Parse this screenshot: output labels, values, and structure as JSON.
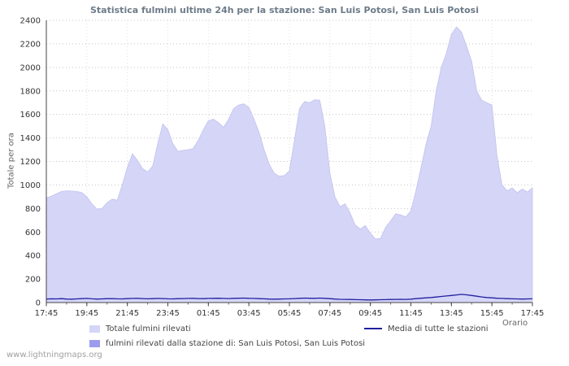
{
  "page": {
    "watermark": "www.lightningmaps.org"
  },
  "chart": {
    "title": "Statistica fulmini ultime 24h per la stazione: San Luis Potosi, San Luis Potosi",
    "ylabel": "Totale per ora",
    "xlabel": "Orario",
    "legend": [
      {
        "label": "Totale fulmini rilevati",
        "swatch": "#d5d5f7",
        "type": "area"
      },
      {
        "label": "fulmini rilevati dalla stazione di: San Luis Potosi, San Luis Potosi",
        "swatch": "#9c9cec",
        "type": "area"
      },
      {
        "label": "Media di tutte le stazioni",
        "swatch": "#2020a0",
        "type": "line"
      }
    ],
    "colors": {
      "title": "#6d7b88",
      "area_total": "#d5d5f7",
      "area_station": "#9c9cec",
      "line_average": "#2020a0",
      "grid": "#c4c4cc",
      "axis": "#444444"
    }
  },
  "chart_data": {
    "type": "area",
    "title": "Statistica fulmini ultime 24h per la stazione: San Luis Potosi, San Luis Potosi",
    "xlabel": "Orario",
    "ylabel": "Totale per ora",
    "ylim": [
      0,
      2400
    ],
    "y_ticks": [
      0,
      200,
      400,
      600,
      800,
      1000,
      1200,
      1400,
      1600,
      1800,
      2000,
      2200,
      2400
    ],
    "x_ticks": [
      "17:45",
      "19:45",
      "21:45",
      "23:45",
      "01:45",
      "03:45",
      "05:45",
      "07:45",
      "09:45",
      "11:45",
      "13:45",
      "15:45",
      "17:45"
    ],
    "x_interval_minutes": 15,
    "x_span_hours": 24,
    "grid": true,
    "legend_position": "bottom",
    "series": [
      {
        "name": "Totale fulmini rilevati",
        "type": "area",
        "color": "#d5d5f7",
        "values": [
          890,
          905,
          925,
          945,
          950,
          948,
          945,
          935,
          900,
          840,
          795,
          800,
          850,
          880,
          870,
          1000,
          1150,
          1265,
          1210,
          1140,
          1110,
          1160,
          1350,
          1520,
          1470,
          1350,
          1285,
          1295,
          1300,
          1310,
          1380,
          1470,
          1545,
          1560,
          1530,
          1490,
          1560,
          1650,
          1680,
          1690,
          1660,
          1560,
          1450,
          1300,
          1180,
          1100,
          1075,
          1080,
          1120,
          1380,
          1650,
          1710,
          1700,
          1725,
          1720,
          1500,
          1100,
          900,
          815,
          840,
          760,
          660,
          625,
          655,
          590,
          540,
          545,
          640,
          695,
          755,
          745,
          730,
          780,
          950,
          1150,
          1350,
          1500,
          1800,
          2000,
          2120,
          2280,
          2345,
          2300,
          2180,
          2050,
          1800,
          1720,
          1700,
          1680,
          1250,
          1000,
          950,
          975,
          935,
          965,
          940,
          975
        ]
      },
      {
        "name": "fulmini rilevati dalla stazione di: San Luis Potosi, San Luis Potosi",
        "type": "area",
        "color": "#9c9cec",
        "values": [
          0,
          0,
          0,
          0,
          0,
          0,
          0,
          0,
          0,
          0,
          0,
          0,
          0,
          0,
          0,
          0,
          0,
          0,
          0,
          0,
          0,
          0,
          0,
          0,
          0,
          0,
          0,
          0,
          0,
          0,
          0,
          0,
          0,
          0,
          0,
          0,
          0,
          0,
          0,
          0,
          0,
          0,
          0,
          0,
          0,
          0,
          0,
          0,
          0,
          0,
          0,
          0,
          0,
          0,
          0,
          0,
          0,
          0,
          0,
          0,
          0,
          0,
          0,
          0,
          0,
          0,
          0,
          0,
          0,
          0,
          0,
          0,
          0,
          0,
          0,
          0,
          0,
          0,
          0,
          0,
          0,
          0,
          0,
          0,
          0,
          0,
          0,
          0,
          0,
          0,
          0,
          0,
          0,
          0,
          0,
          0,
          0
        ]
      },
      {
        "name": "Media di tutte le stazioni",
        "type": "line",
        "color": "#2020a0",
        "values": [
          30,
          32,
          31,
          33,
          30,
          29,
          31,
          33,
          35,
          32,
          30,
          31,
          33,
          34,
          32,
          31,
          33,
          35,
          36,
          34,
          32,
          33,
          35,
          34,
          32,
          31,
          33,
          34,
          35,
          36,
          34,
          33,
          35,
          36,
          37,
          35,
          34,
          36,
          37,
          38,
          36,
          35,
          33,
          32,
          30,
          29,
          30,
          31,
          32,
          34,
          36,
          38,
          37,
          36,
          38,
          36,
          33,
          30,
          28,
          27,
          26,
          25,
          24,
          23,
          22,
          23,
          24,
          25,
          26,
          27,
          28,
          27,
          29,
          33,
          37,
          40,
          43,
          47,
          52,
          56,
          60,
          65,
          70,
          66,
          60,
          54,
          48,
          43,
          40,
          37,
          35,
          33,
          32,
          31,
          30,
          31,
          32
        ]
      }
    ]
  }
}
